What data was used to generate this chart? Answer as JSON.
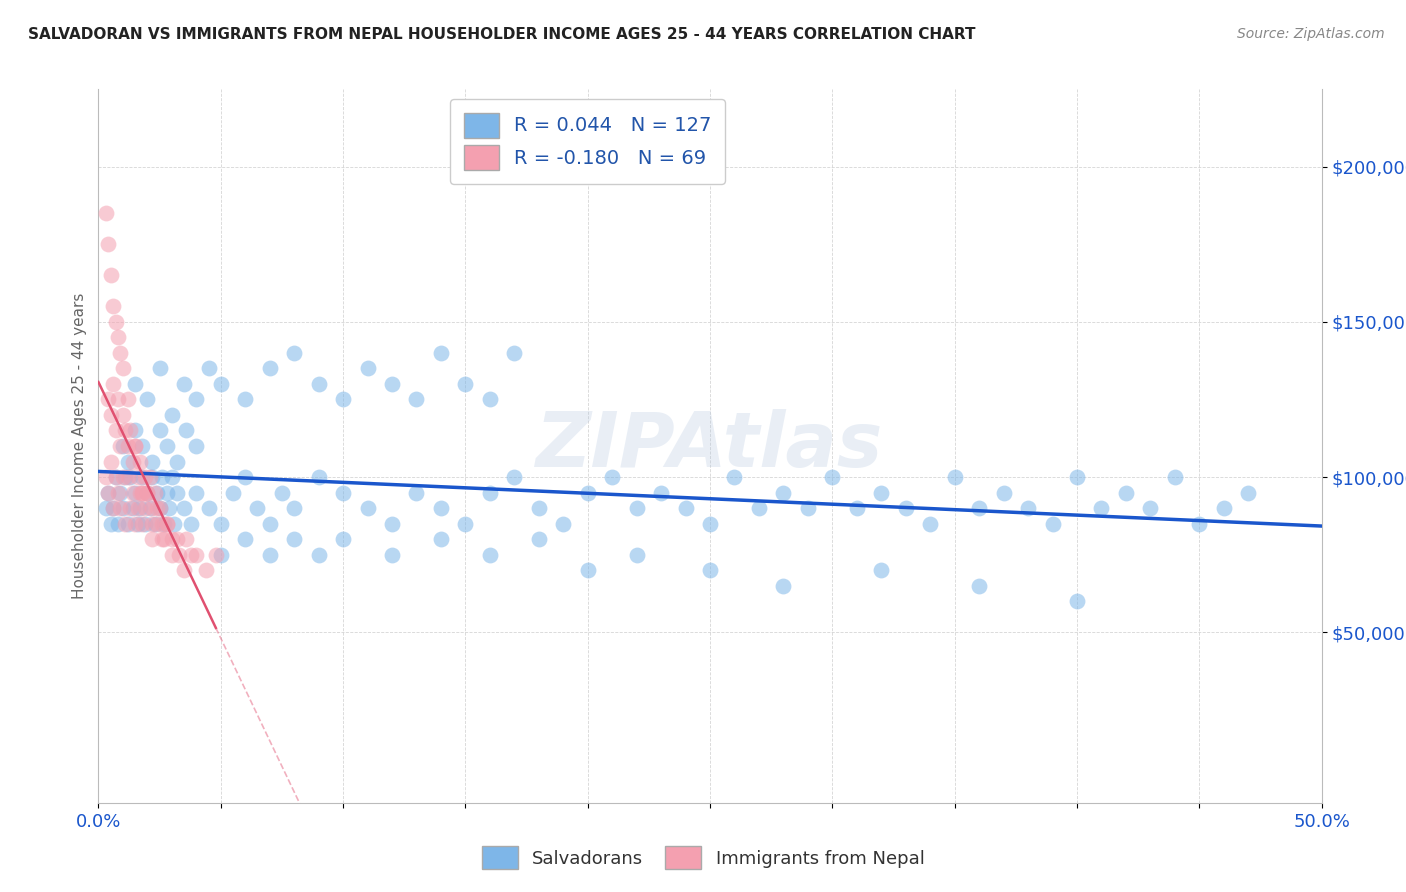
{
  "title": "SALVADORAN VS IMMIGRANTS FROM NEPAL HOUSEHOLDER INCOME AGES 25 - 44 YEARS CORRELATION CHART",
  "source": "Source: ZipAtlas.com",
  "ylabel": "Householder Income Ages 25 - 44 years",
  "ytick_labels": [
    "$50,000",
    "$100,000",
    "$150,000",
    "$200,000"
  ],
  "ytick_values": [
    50000,
    100000,
    150000,
    200000
  ],
  "ylim": [
    -5000,
    225000
  ],
  "xlim": [
    0.0,
    0.5
  ],
  "r_salvadoran": 0.044,
  "n_salvadoran": 127,
  "r_nepal": -0.18,
  "n_nepal": 69,
  "legend_label_1": "Salvadorans",
  "legend_label_2": "Immigrants from Nepal",
  "watermark": "ZIPAtlas",
  "color_blue": "#7EB6E8",
  "color_pink": "#F4A0B0",
  "color_blue_line": "#1A56CC",
  "color_pink_line": "#E05070",
  "background": "#FFFFFF",
  "grid_color": "#CCCCCC",
  "sal_x": [
    0.003,
    0.004,
    0.005,
    0.006,
    0.007,
    0.008,
    0.009,
    0.01,
    0.011,
    0.012,
    0.013,
    0.014,
    0.015,
    0.016,
    0.017,
    0.018,
    0.019,
    0.02,
    0.021,
    0.022,
    0.023,
    0.024,
    0.025,
    0.026,
    0.027,
    0.028,
    0.029,
    0.03,
    0.031,
    0.032,
    0.035,
    0.038,
    0.04,
    0.045,
    0.05,
    0.055,
    0.06,
    0.065,
    0.07,
    0.075,
    0.08,
    0.09,
    0.1,
    0.11,
    0.12,
    0.13,
    0.14,
    0.15,
    0.16,
    0.17,
    0.18,
    0.19,
    0.2,
    0.21,
    0.22,
    0.23,
    0.24,
    0.25,
    0.26,
    0.27,
    0.28,
    0.29,
    0.3,
    0.31,
    0.32,
    0.33,
    0.34,
    0.35,
    0.36,
    0.37,
    0.38,
    0.39,
    0.4,
    0.41,
    0.42,
    0.43,
    0.44,
    0.45,
    0.46,
    0.47,
    0.015,
    0.02,
    0.025,
    0.03,
    0.035,
    0.04,
    0.045,
    0.05,
    0.06,
    0.07,
    0.08,
    0.09,
    0.1,
    0.11,
    0.12,
    0.13,
    0.14,
    0.15,
    0.16,
    0.17,
    0.01,
    0.012,
    0.015,
    0.018,
    0.022,
    0.025,
    0.028,
    0.032,
    0.036,
    0.04,
    0.05,
    0.06,
    0.07,
    0.08,
    0.09,
    0.1,
    0.12,
    0.14,
    0.16,
    0.18,
    0.2,
    0.22,
    0.25,
    0.28,
    0.32,
    0.36,
    0.4
  ],
  "sal_y": [
    90000,
    95000,
    85000,
    90000,
    100000,
    85000,
    95000,
    90000,
    100000,
    85000,
    100000,
    90000,
    95000,
    85000,
    90000,
    100000,
    85000,
    95000,
    90000,
    100000,
    85000,
    95000,
    90000,
    100000,
    85000,
    95000,
    90000,
    100000,
    85000,
    95000,
    90000,
    85000,
    95000,
    90000,
    85000,
    95000,
    100000,
    90000,
    85000,
    95000,
    90000,
    100000,
    95000,
    90000,
    85000,
    95000,
    90000,
    85000,
    95000,
    100000,
    90000,
    85000,
    95000,
    100000,
    90000,
    95000,
    90000,
    85000,
    100000,
    90000,
    95000,
    90000,
    100000,
    90000,
    95000,
    90000,
    85000,
    100000,
    90000,
    95000,
    90000,
    85000,
    100000,
    90000,
    95000,
    90000,
    100000,
    85000,
    90000,
    95000,
    130000,
    125000,
    135000,
    120000,
    130000,
    125000,
    135000,
    130000,
    125000,
    135000,
    140000,
    130000,
    125000,
    135000,
    130000,
    125000,
    140000,
    130000,
    125000,
    140000,
    110000,
    105000,
    115000,
    110000,
    105000,
    115000,
    110000,
    105000,
    115000,
    110000,
    75000,
    80000,
    75000,
    80000,
    75000,
    80000,
    75000,
    80000,
    75000,
    80000,
    70000,
    75000,
    70000,
    65000,
    70000,
    65000,
    60000
  ],
  "nep_x": [
    0.003,
    0.004,
    0.005,
    0.006,
    0.007,
    0.008,
    0.009,
    0.01,
    0.011,
    0.012,
    0.013,
    0.014,
    0.015,
    0.016,
    0.017,
    0.018,
    0.019,
    0.02,
    0.022,
    0.024,
    0.026,
    0.028,
    0.03,
    0.033,
    0.036,
    0.04,
    0.044,
    0.048,
    0.004,
    0.005,
    0.006,
    0.007,
    0.008,
    0.009,
    0.01,
    0.011,
    0.012,
    0.013,
    0.014,
    0.015,
    0.016,
    0.017,
    0.018,
    0.019,
    0.02,
    0.021,
    0.022,
    0.023,
    0.024,
    0.025,
    0.026,
    0.027,
    0.028,
    0.03,
    0.032,
    0.035,
    0.038,
    0.005,
    0.006,
    0.007,
    0.008,
    0.009,
    0.01,
    0.012,
    0.015,
    0.018,
    0.022,
    0.003,
    0.004
  ],
  "nep_y": [
    100000,
    95000,
    105000,
    90000,
    100000,
    95000,
    90000,
    100000,
    85000,
    100000,
    90000,
    95000,
    85000,
    90000,
    95000,
    85000,
    90000,
    95000,
    85000,
    90000,
    80000,
    85000,
    80000,
    75000,
    80000,
    75000,
    70000,
    75000,
    125000,
    120000,
    130000,
    115000,
    125000,
    110000,
    120000,
    115000,
    110000,
    115000,
    105000,
    110000,
    100000,
    105000,
    95000,
    100000,
    95000,
    100000,
    90000,
    95000,
    85000,
    90000,
    85000,
    80000,
    85000,
    75000,
    80000,
    70000,
    75000,
    165000,
    155000,
    150000,
    145000,
    140000,
    135000,
    125000,
    110000,
    95000,
    80000,
    185000,
    175000
  ]
}
